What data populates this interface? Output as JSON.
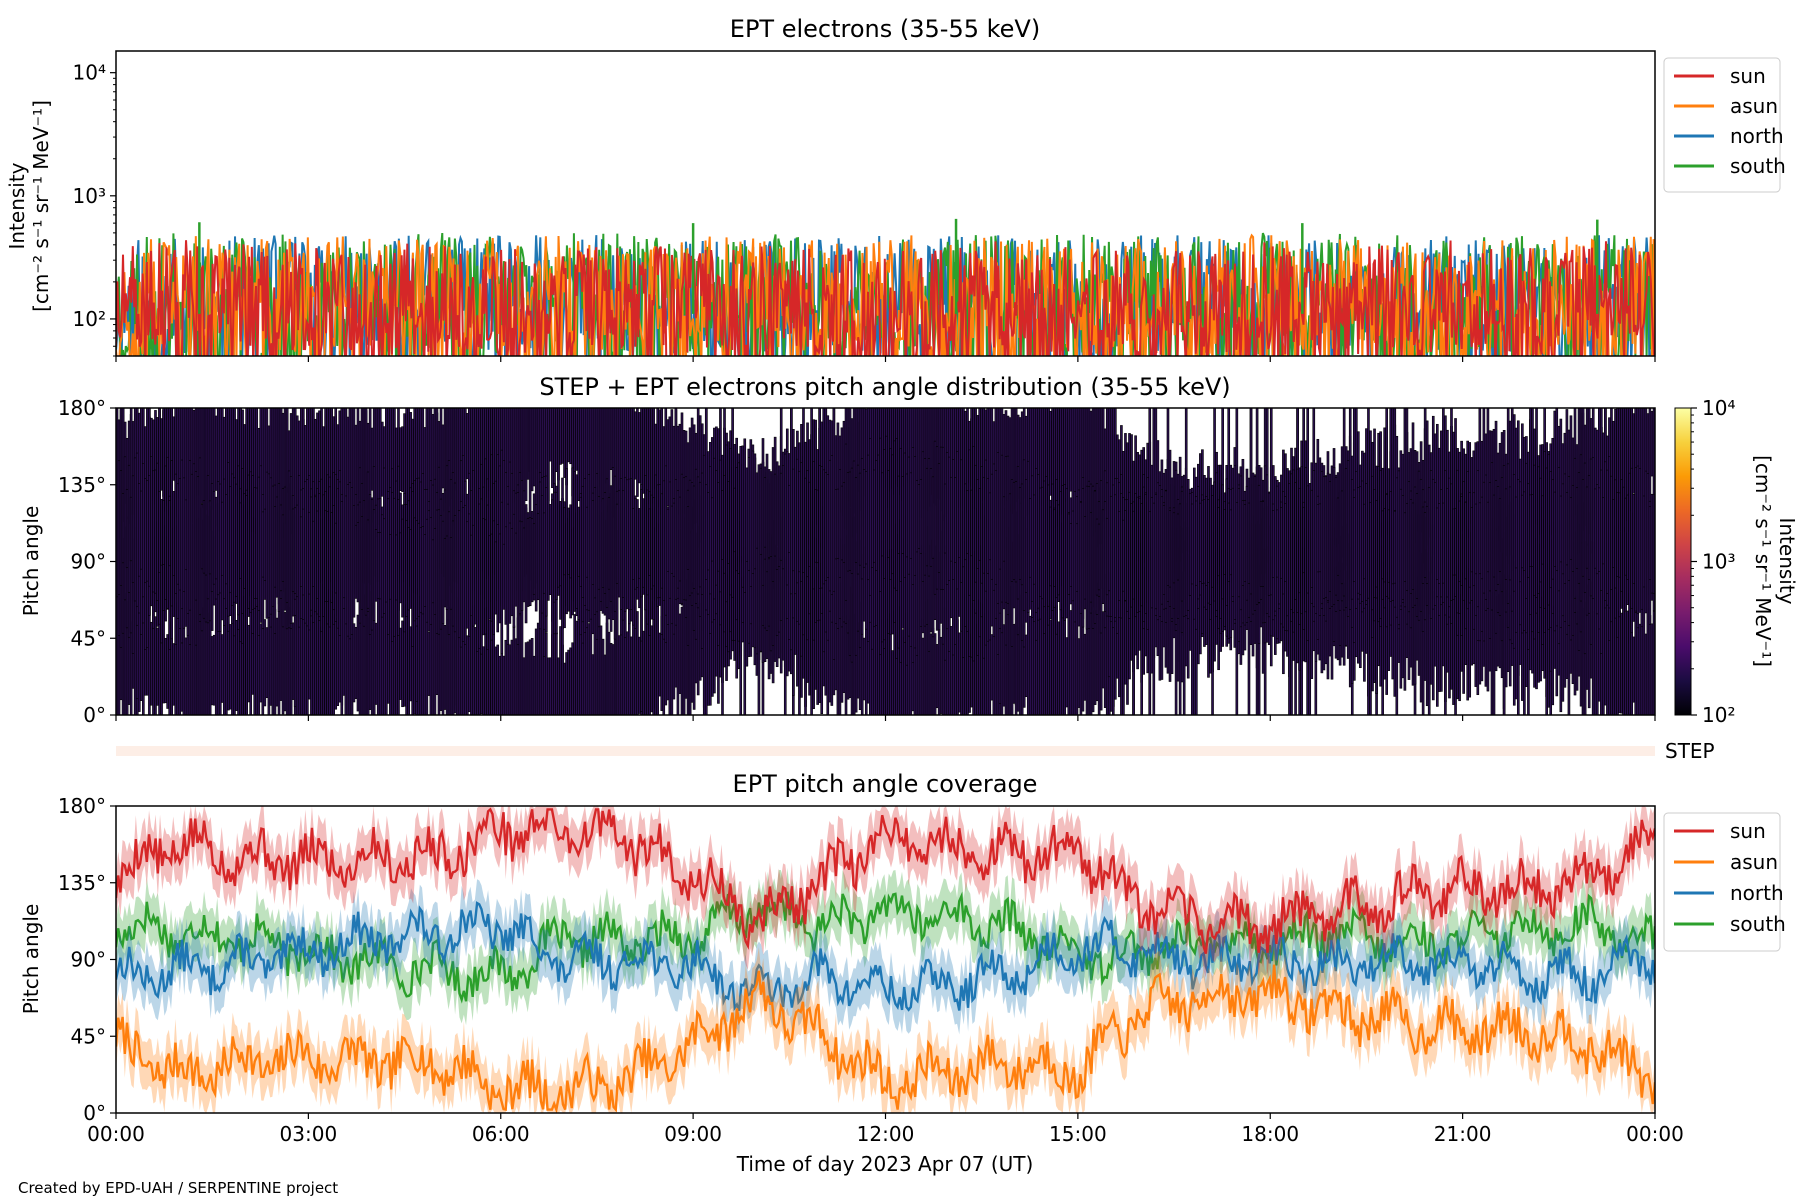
{
  "chart_data": [
    {
      "type": "line",
      "title": "EPT electrons (35-55 keV)",
      "ylabel_main": "Intensity",
      "ylabel_units": "[cm⁻² s⁻¹ sr⁻¹ MeV⁻¹]",
      "yscale": "log",
      "ylim": [
        50,
        15000
      ],
      "yticks": [
        {
          "value": 100,
          "label": "10²"
        },
        {
          "value": 1000,
          "label": "10³"
        },
        {
          "value": 10000,
          "label": "10⁴"
        }
      ],
      "x_range_hours": [
        0,
        24
      ],
      "legend_position": "outside-right-top",
      "series": [
        {
          "name": "north",
          "color": "#1f77b4",
          "baseline": 115,
          "spread": 0.62,
          "seed": 11
        },
        {
          "name": "south",
          "color": "#2ca02c",
          "baseline": 120,
          "spread": 0.62,
          "seed": 23
        },
        {
          "name": "asun",
          "color": "#ff7f0e",
          "baseline": 115,
          "spread": 0.62,
          "seed": 37
        },
        {
          "name": "sun",
          "color": "#d62728",
          "baseline": 110,
          "spread": 0.55,
          "seed": 51
        }
      ],
      "legend_order": [
        "sun",
        "asun",
        "north",
        "south"
      ],
      "peaks": [
        {
          "hour": 1.3,
          "value": 610
        },
        {
          "hour": 9.0,
          "value": 600
        },
        {
          "hour": 13.1,
          "value": 650
        },
        {
          "hour": 18.5,
          "value": 600
        },
        {
          "hour": 23.1,
          "value": 640
        }
      ]
    },
    {
      "type": "heatmap",
      "title": "STEP + EPT electrons pitch angle distribution (35-55 keV)",
      "ylabel": "Pitch angle",
      "ylim": [
        0,
        180
      ],
      "yticks": [
        "0°",
        "45°",
        "90°",
        "135°",
        "180°"
      ],
      "x_range_hours": [
        0,
        24
      ],
      "colorbar": {
        "scale": "log",
        "range": [
          100,
          10000
        ],
        "ticks": [
          "10²",
          "10³",
          "10⁴"
        ],
        "label_main": "Intensity",
        "label_units": "[cm⁻² s⁻¹ sr⁻¹ MeV⁻¹]",
        "colors": [
          "#000004",
          "#1b0c41",
          "#4a0c6b",
          "#781c6d",
          "#a52c60",
          "#cf4446",
          "#ed6925",
          "#fb9b06",
          "#f7d13d",
          "#fcffa4"
        ]
      },
      "cell_color": "#2a0f4e",
      "edge_color": "#000000"
    },
    {
      "type": "bar",
      "label": "STEP",
      "band_color": "#fdeee6"
    },
    {
      "type": "line",
      "title": "EPT pitch angle coverage",
      "ylabel": "Pitch angle",
      "ylim": [
        0,
        180
      ],
      "yticks": [
        "0°",
        "45°",
        "90°",
        "135°",
        "180°"
      ],
      "x_range_hours": [
        0,
        24
      ],
      "xticks": [
        "00:00",
        "03:00",
        "06:00",
        "09:00",
        "12:00",
        "15:00",
        "18:00",
        "21:00",
        "00:00"
      ],
      "xlabel": "Time of day 2023 Apr 07 (UT)",
      "legend_position": "outside-right-top",
      "series": [
        {
          "name": "sun",
          "color": "#d62728"
        },
        {
          "name": "asun",
          "color": "#ff7f0e"
        },
        {
          "name": "north",
          "color": "#1f77b4"
        },
        {
          "name": "south",
          "color": "#2ca02c"
        }
      ],
      "sun_angle_knots": {
        "hours": [
          0,
          1,
          2,
          3,
          4,
          5,
          6,
          7,
          8,
          9,
          10,
          11,
          12,
          13,
          14,
          15,
          16,
          17,
          18,
          19,
          20,
          21,
          22,
          23,
          24
        ],
        "values": [
          140,
          158,
          150,
          148,
          150,
          150,
          166,
          168,
          160,
          140,
          112,
          135,
          162,
          156,
          150,
          156,
          120,
          112,
          110,
          120,
          126,
          132,
          130,
          140,
          160
        ]
      },
      "north_angle_knots": {
        "hours": [
          0,
          1,
          2,
          3,
          4,
          5,
          6,
          7,
          8,
          9,
          10,
          11,
          12,
          13,
          14,
          15,
          16,
          17,
          18,
          19,
          20,
          21,
          22,
          23,
          24
        ],
        "values": [
          80,
          84,
          88,
          95,
          102,
          106,
          110,
          88,
          90,
          86,
          70,
          80,
          72,
          75,
          82,
          98,
          96,
          88,
          90,
          85,
          92,
          88,
          82,
          80,
          90
        ]
      }
    }
  ],
  "footer": "Created by EPD-UAH / SERPENTINE project"
}
